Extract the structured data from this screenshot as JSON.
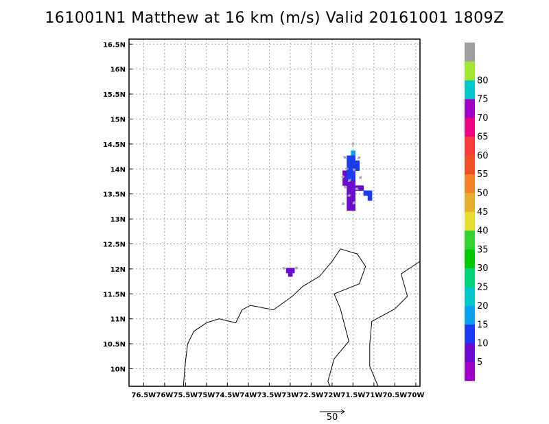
{
  "title": "161001N1 Matthew at 16 km (m/s) Valid 20161001  1809Z",
  "map": {
    "lon_range": [
      -76.85,
      -69.9
    ],
    "lat_range": [
      9.65,
      16.6
    ],
    "x_ticks": [
      {
        "lon": -76.5,
        "label": "76.5W"
      },
      {
        "lon": -76.0,
        "label": "76W"
      },
      {
        "lon": -75.5,
        "label": "75.5W"
      },
      {
        "lon": -75.0,
        "label": "75W"
      },
      {
        "lon": -74.5,
        "label": "74.5W"
      },
      {
        "lon": -74.0,
        "label": "74W"
      },
      {
        "lon": -73.5,
        "label": "73.5W"
      },
      {
        "lon": -73.0,
        "label": "73W"
      },
      {
        "lon": -72.5,
        "label": "72.5W"
      },
      {
        "lon": -72.0,
        "label": "72W"
      },
      {
        "lon": -71.5,
        "label": "71.5W"
      },
      {
        "lon": -71.0,
        "label": "71W"
      },
      {
        "lon": -70.5,
        "label": "70.5W"
      },
      {
        "lon": -70.0,
        "label": "70W"
      }
    ],
    "y_ticks": [
      {
        "lat": 10.0,
        "label": "10N"
      },
      {
        "lat": 10.5,
        "label": "10.5N"
      },
      {
        "lat": 11.0,
        "label": "11N"
      },
      {
        "lat": 11.5,
        "label": "11.5N"
      },
      {
        "lat": 12.0,
        "label": "12N"
      },
      {
        "lat": 12.5,
        "label": "12.5N"
      },
      {
        "lat": 13.0,
        "label": "13N"
      },
      {
        "lat": 13.5,
        "label": "13.5N"
      },
      {
        "lat": 14.0,
        "label": "14N"
      },
      {
        "lat": 14.5,
        "label": "14.5N"
      },
      {
        "lat": 15.0,
        "label": "15N"
      },
      {
        "lat": 15.5,
        "label": "15.5N"
      },
      {
        "lat": 16.0,
        "label": "16N"
      },
      {
        "lat": 16.5,
        "label": "16.5N"
      }
    ],
    "grid": "dotted"
  },
  "coastlines": [
    [
      [
        -75.55,
        9.65
      ],
      [
        -75.52,
        10.0
      ],
      [
        -75.45,
        10.5
      ],
      [
        -75.3,
        10.75
      ],
      [
        -75.0,
        10.92
      ],
      [
        -74.7,
        11.0
      ],
      [
        -74.3,
        10.92
      ],
      [
        -74.15,
        11.18
      ],
      [
        -73.95,
        11.27
      ],
      [
        -73.4,
        11.18
      ],
      [
        -72.95,
        11.45
      ],
      [
        -72.7,
        11.65
      ],
      [
        -72.3,
        11.85
      ],
      [
        -72.0,
        12.15
      ],
      [
        -71.8,
        12.4
      ],
      [
        -71.4,
        12.3
      ],
      [
        -71.2,
        12.05
      ],
      [
        -71.35,
        11.7
      ],
      [
        -71.95,
        11.5
      ],
      [
        -71.8,
        11.2
      ],
      [
        -71.6,
        10.55
      ],
      [
        -71.95,
        10.2
      ],
      [
        -72.1,
        9.75
      ],
      [
        -72.05,
        9.65
      ]
    ],
    [
      [
        -70.9,
        9.65
      ],
      [
        -71.1,
        10.05
      ],
      [
        -71.1,
        10.5
      ],
      [
        -71.05,
        10.95
      ],
      [
        -70.5,
        11.2
      ],
      [
        -70.2,
        11.45
      ],
      [
        -70.35,
        11.9
      ],
      [
        -69.9,
        12.15
      ]
    ]
  ],
  "storm_cells": [
    {
      "lon": -71.5,
      "lat": 14.32,
      "value": 18
    },
    {
      "lon": -71.6,
      "lat": 14.22,
      "value": 12
    },
    {
      "lon": -71.5,
      "lat": 14.22,
      "value": 14
    },
    {
      "lon": -71.4,
      "lat": 14.12,
      "value": 12
    },
    {
      "lon": -71.6,
      "lat": 14.12,
      "value": 12
    },
    {
      "lon": -71.5,
      "lat": 14.12,
      "value": 13
    },
    {
      "lon": -71.6,
      "lat": 14.02,
      "value": 11
    },
    {
      "lon": -71.5,
      "lat": 14.02,
      "value": 12
    },
    {
      "lon": -71.4,
      "lat": 14.02,
      "value": 11
    },
    {
      "lon": -71.7,
      "lat": 13.92,
      "value": 6
    },
    {
      "lon": -71.6,
      "lat": 13.92,
      "value": 11
    },
    {
      "lon": -71.5,
      "lat": 13.92,
      "value": 10
    },
    {
      "lon": -71.7,
      "lat": 13.82,
      "value": 7
    },
    {
      "lon": -71.6,
      "lat": 13.82,
      "value": 10
    },
    {
      "lon": -71.5,
      "lat": 13.82,
      "value": 11
    },
    {
      "lon": -71.7,
      "lat": 13.72,
      "value": 5
    },
    {
      "lon": -71.6,
      "lat": 13.72,
      "value": 9
    },
    {
      "lon": -71.5,
      "lat": 13.72,
      "value": 6
    },
    {
      "lon": -71.4,
      "lat": 13.62,
      "value": 7
    },
    {
      "lon": -71.3,
      "lat": 13.62,
      "value": 6
    },
    {
      "lon": -71.6,
      "lat": 13.62,
      "value": 6
    },
    {
      "lon": -71.5,
      "lat": 13.62,
      "value": 5
    },
    {
      "lon": -71.6,
      "lat": 13.52,
      "value": 5
    },
    {
      "lon": -71.5,
      "lat": 13.52,
      "value": 6
    },
    {
      "lon": -71.2,
      "lat": 13.52,
      "value": 11
    },
    {
      "lon": -71.1,
      "lat": 13.52,
      "value": 10
    },
    {
      "lon": -71.6,
      "lat": 13.42,
      "value": 5
    },
    {
      "lon": -71.5,
      "lat": 13.42,
      "value": 6
    },
    {
      "lon": -71.1,
      "lat": 13.42,
      "value": 12
    },
    {
      "lon": -71.6,
      "lat": 13.32,
      "value": 6
    },
    {
      "lon": -71.5,
      "lat": 13.32,
      "value": 5
    },
    {
      "lon": -71.6,
      "lat": 13.22,
      "value": 5
    },
    {
      "lon": -71.5,
      "lat": 13.22,
      "value": 6
    },
    {
      "lon": -73.05,
      "lat": 11.97,
      "value": 6
    },
    {
      "lon": -72.95,
      "lat": 11.97,
      "value": 6
    },
    {
      "lon": -73.0,
      "lat": 11.9,
      "value": 6
    }
  ],
  "wind_vectors": [
    {
      "lon": -71.5,
      "lat": 14.45,
      "u": 0.0,
      "v": 8
    },
    {
      "lon": -71.65,
      "lat": 14.2,
      "u": -6,
      "v": 5
    },
    {
      "lon": -71.4,
      "lat": 14.2,
      "u": 6,
      "v": 4
    },
    {
      "lon": -71.6,
      "lat": 14.0,
      "u": -7,
      "v": 1
    },
    {
      "lon": -71.45,
      "lat": 13.97,
      "u": -4,
      "v": 3
    },
    {
      "lon": -71.7,
      "lat": 13.85,
      "u": -6,
      "v": -1
    },
    {
      "lon": -71.55,
      "lat": 13.8,
      "u": -5,
      "v": -5
    },
    {
      "lon": -71.35,
      "lat": 13.8,
      "u": 4,
      "v": 5
    },
    {
      "lon": -71.65,
      "lat": 13.62,
      "u": -5,
      "v": 3
    },
    {
      "lon": -71.45,
      "lat": 13.62,
      "u": 6,
      "v": -3
    },
    {
      "lon": -71.55,
      "lat": 13.48,
      "u": -6,
      "v": -2
    },
    {
      "lon": -71.7,
      "lat": 13.32,
      "u": -5,
      "v": -3
    },
    {
      "lon": -71.45,
      "lat": 13.35,
      "u": -4,
      "v": -5
    },
    {
      "lon": -73.1,
      "lat": 12.0,
      "u": -7,
      "v": 2
    },
    {
      "lon": -72.9,
      "lat": 12.0,
      "u": 6,
      "v": 3
    }
  ],
  "reference_vector": {
    "label": "50",
    "magnitude": 50
  },
  "colorbar": {
    "levels": [
      {
        "min": 0,
        "max": 5,
        "color": "#9c00c8"
      },
      {
        "min": 5,
        "max": 10,
        "color": "#6a0ccf"
      },
      {
        "min": 10,
        "max": 15,
        "color": "#1c3cf2"
      },
      {
        "min": 15,
        "max": 20,
        "color": "#0aa0ef"
      },
      {
        "min": 20,
        "max": 25,
        "color": "#00c8c8"
      },
      {
        "min": 25,
        "max": 30,
        "color": "#00d278"
      },
      {
        "min": 30,
        "max": 35,
        "color": "#00c800"
      },
      {
        "min": 35,
        "max": 40,
        "color": "#32d232"
      },
      {
        "min": 40,
        "max": 45,
        "color": "#e6dc32"
      },
      {
        "min": 45,
        "max": 50,
        "color": "#e6af2d"
      },
      {
        "min": 50,
        "max": 55,
        "color": "#f08228"
      },
      {
        "min": 55,
        "max": 60,
        "color": "#f05028"
      },
      {
        "min": 60,
        "max": 65,
        "color": "#fa3c3c"
      },
      {
        "min": 65,
        "max": 70,
        "color": "#f00082"
      },
      {
        "min": 70,
        "max": 75,
        "color": "#a000c8"
      },
      {
        "min": 75,
        "max": 80,
        "color": "#00c8c8"
      },
      {
        "min": 80,
        "max": 85,
        "color": "#a0e632"
      },
      {
        "min": 85,
        "max": 90,
        "color": "#a0a0a0"
      }
    ],
    "labels": [
      "5",
      "10",
      "15",
      "20",
      "25",
      "30",
      "35",
      "40",
      "45",
      "50",
      "55",
      "60",
      "65",
      "70",
      "75",
      "80"
    ]
  }
}
